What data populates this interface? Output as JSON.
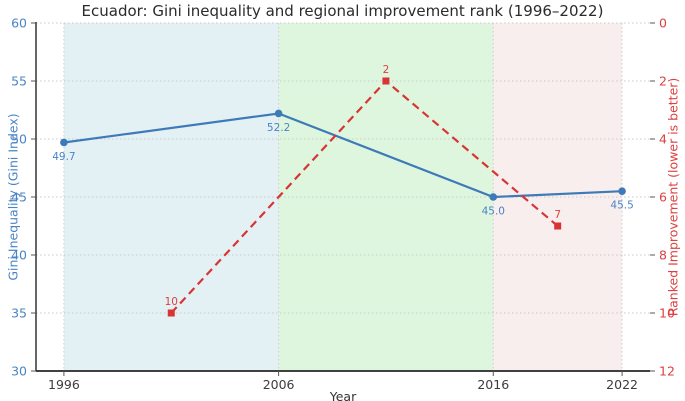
{
  "chart_data": {
    "type": "line",
    "title": "Ecuador: Gini inequality and regional improvement rank (1996–2022)",
    "xlabel": "Year",
    "ylabel_left": "Gini Inequality (Gini Index)",
    "ylabel_right": "Ranked Improvement (lower is better)",
    "xlim": [
      1994.7,
      2023.3
    ],
    "x_ticks": [
      1996,
      2006,
      2016,
      2022
    ],
    "x_tick_labels": [
      "1996",
      "2006",
      "2016",
      "2022"
    ],
    "ylim_left": [
      30,
      60
    ],
    "yticks_left": [
      30,
      35,
      40,
      45,
      50,
      55,
      60
    ],
    "ytick_labels_left": [
      "30",
      "35",
      "40",
      "45",
      "50",
      "55",
      "60"
    ],
    "ylim_right": [
      0,
      12
    ],
    "right_axis_inverted": true,
    "yticks_right": [
      0,
      2,
      4,
      6,
      8,
      10,
      12
    ],
    "ytick_labels_right": [
      "0",
      "2",
      "4",
      "6",
      "8",
      "10",
      "12"
    ],
    "grid": true,
    "legend": "none",
    "series": [
      {
        "name": "gini-index",
        "axis": "left",
        "line_style": "solid",
        "marker": "circle",
        "color": "#3e7ab8",
        "label_color": "#4a84c6",
        "label_position": "below",
        "x": [
          1996,
          2006,
          2016,
          2022
        ],
        "y": [
          49.7,
          52.2,
          45.0,
          45.5
        ],
        "point_labels": [
          "49.7",
          "52.2",
          "45.0",
          "45.5"
        ]
      },
      {
        "name": "regional-improvement-rank",
        "axis": "right",
        "line_style": "dashed",
        "marker": "square",
        "color": "#d93434",
        "label_color": "#dd4040",
        "label_position": "above",
        "x": [
          2001,
          2011,
          2019
        ],
        "y": [
          10,
          2,
          7
        ],
        "point_labels": [
          "10",
          "2",
          "7"
        ]
      }
    ],
    "regions": [
      {
        "start": 1996,
        "end": 2006,
        "color": "#e4f1f4"
      },
      {
        "start": 2006,
        "end": 2016,
        "color": "#ddf6dd"
      },
      {
        "start": 2016,
        "end": 2022,
        "color": "#f9eeee"
      }
    ],
    "colors": {
      "left_axis": "#4a84c6",
      "right_axis": "#dd4040",
      "x_axis_text": "#3c3c3c",
      "grid": "#c9c9c9",
      "spine": "#262626",
      "tick_mark": "#555555",
      "title_text": "#2b2b2b",
      "background": "#ffffff"
    }
  }
}
